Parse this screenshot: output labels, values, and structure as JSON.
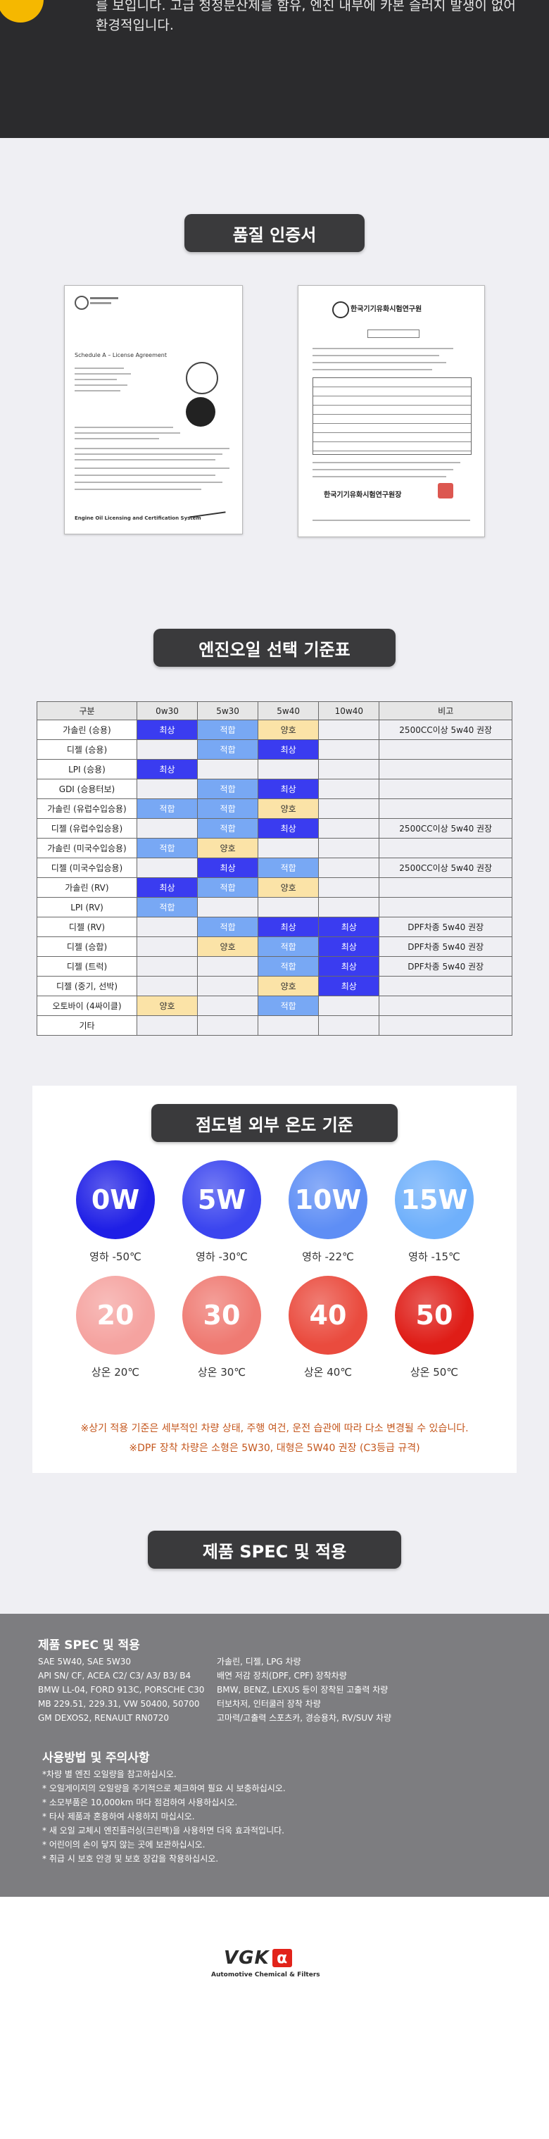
{
  "intro": {
    "line1": "를 보입니다. 고급 청정분산제를 함유, 엔진 내부에 카본 슬러지 발생이 없어",
    "line2": "환경적입니다."
  },
  "cert_section": {
    "title": "품질 인증서"
  },
  "cert_right": {
    "title": "한국기기유화시험연구원",
    "stamp": "한국기기유화시험연구원장"
  },
  "cert_left": {
    "title": "Schedule A – License Agreement",
    "footer": "Engine Oil Licensing and Certification System"
  },
  "selection": {
    "title": "엔진오일 선택 기준표",
    "headers": [
      "구분",
      "0w30",
      "5w30",
      "5w40",
      "10w40",
      "비고"
    ],
    "rows": [
      {
        "name": "가솔린 (승용)",
        "cells": [
          "최상",
          "적합",
          "양호",
          "",
          "2500CC이상 5w40 권장"
        ]
      },
      {
        "name": "디젤 (승용)",
        "cells": [
          "",
          "적합",
          "최상",
          "",
          ""
        ]
      },
      {
        "name": "LPI (승용)",
        "cells": [
          "최상",
          "",
          "",
          "",
          ""
        ]
      },
      {
        "name": "GDI (승용터보)",
        "cells": [
          "",
          "적합",
          "최상",
          "",
          ""
        ]
      },
      {
        "name": "가솔린 (유럽수입승용)",
        "cells": [
          "적합",
          "적합",
          "양호",
          "",
          ""
        ]
      },
      {
        "name": "디젤 (유럽수입승용)",
        "cells": [
          "",
          "적합",
          "최상",
          "",
          "2500CC이상 5w40 권장"
        ]
      },
      {
        "name": "가솔린 (미국수입승용)",
        "cells": [
          "적합",
          "양호",
          "",
          "",
          ""
        ]
      },
      {
        "name": "디젤 (미국수입승용)",
        "cells": [
          "",
          "최상",
          "적합",
          "",
          "2500CC이상 5w40 권장"
        ]
      },
      {
        "name": "가솔린 (RV)",
        "cells": [
          "최상",
          "적합",
          "양호",
          "",
          ""
        ]
      },
      {
        "name": "LPI (RV)",
        "cells": [
          "적합",
          "",
          "",
          "",
          ""
        ]
      },
      {
        "name": "디젤 (RV)",
        "cells": [
          "",
          "적합",
          "최상",
          "최상",
          "DPF차종 5w40 권장"
        ]
      },
      {
        "name": "디젤 (승합)",
        "cells": [
          "",
          "양호",
          "적합",
          "최상",
          "DPF차종 5w40 권장"
        ]
      },
      {
        "name": "디젤 (트럭)",
        "cells": [
          "",
          "",
          "적합",
          "최상",
          "DPF차종 5w40 권장"
        ]
      },
      {
        "name": "디젤 (중기, 선박)",
        "cells": [
          "",
          "",
          "양호",
          "최상",
          ""
        ]
      },
      {
        "name": "오토바이 (4싸이클)",
        "cells": [
          "양호",
          "",
          "적합",
          "",
          ""
        ]
      },
      {
        "name": "기타",
        "cells": [
          "",
          "",
          "",
          "",
          ""
        ]
      }
    ],
    "level_colors": {
      "최상": "#3a3cf0",
      "적합": "#78a8f4",
      "양호": "#fbe3a7"
    }
  },
  "temperature": {
    "title": "점도별 외부 온도 기준",
    "winter": [
      {
        "grade": "0W",
        "label": "영하 -50℃",
        "color": "#1f1fe6"
      },
      {
        "grade": "5W",
        "label": "영하 -30℃",
        "color": "#3b45ef"
      },
      {
        "grade": "10W",
        "label": "영하 -22℃",
        "color": "#5e8ef5"
      },
      {
        "grade": "15W",
        "label": "영하 -15℃",
        "color": "#6fb0fb"
      }
    ],
    "summer": [
      {
        "grade": "20",
        "label": "상온 20℃",
        "color": "#f5a3a0"
      },
      {
        "grade": "30",
        "label": "상온 30℃",
        "color": "#ef7a72"
      },
      {
        "grade": "40",
        "label": "상온 40℃",
        "color": "#ea4b3e"
      },
      {
        "grade": "50",
        "label": "상온 50℃",
        "color": "#df1d17"
      }
    ],
    "note1": "※상기 적용 기준은 세부적인 차량 상태, 주행 여건, 운전 습관에 따라 다소 변경될 수 있습니다.",
    "note2": "※DPF 장착 차량은 소형은 5W30, 대형은 5W40 권장 (C3등급 규격)"
  },
  "spec_section": {
    "title": "제품 SPEC 및 적용"
  },
  "spec": {
    "heading": "제품 SPEC 및 적용",
    "left": [
      "SAE 5W40, SAE 5W30",
      "API SN/ CF, ACEA C2/ C3/ A3/ B3/ B4",
      "BMW LL-04, FORD 913C, PORSCHE C30",
      "MB 229.51, 229.31, VW 50400, 50700",
      "GM DEXOS2, RENAULT RN0720"
    ],
    "right": [
      "가솔린, 디젤, LPG 차량",
      "배연 저감 장치(DPF, CPF) 장착차량",
      "BMW, BENZ, LEXUS 등이 장착된 고출력 차량",
      "터보차저, 인터쿨러 장착 차량",
      "고마력/고출력 스포츠카, 경승용차, RV/SUV 차량"
    ],
    "usage_heading": "사용방법 및 주의사항",
    "usage": [
      "*차량 별 엔진 오일량을 참고하십시오.",
      "* 오일게이지의 오일량을 주기적으로 체크하여 필요 시 보충하십시오.",
      "* 소모부품은 10,000km 마다 점검하여 사용하십시오.",
      "* 타사 제품과 혼용하여 사용하지 마십시오.",
      "* 새 오일 교체시 엔진플러싱(크린팩)을 사용하면 더욱 효과적입니다.",
      "* 어린이의 손이 닿지 않는 곳에 보관하십시오.",
      "* 취급 시 보호 안경 및 보호 장갑을 착용하십시오."
    ]
  },
  "brand": {
    "logo": "VGK",
    "logo_mark": "α",
    "tagline": "Automotive Chemical & Filters",
    "logo_color": "#e2231a"
  }
}
